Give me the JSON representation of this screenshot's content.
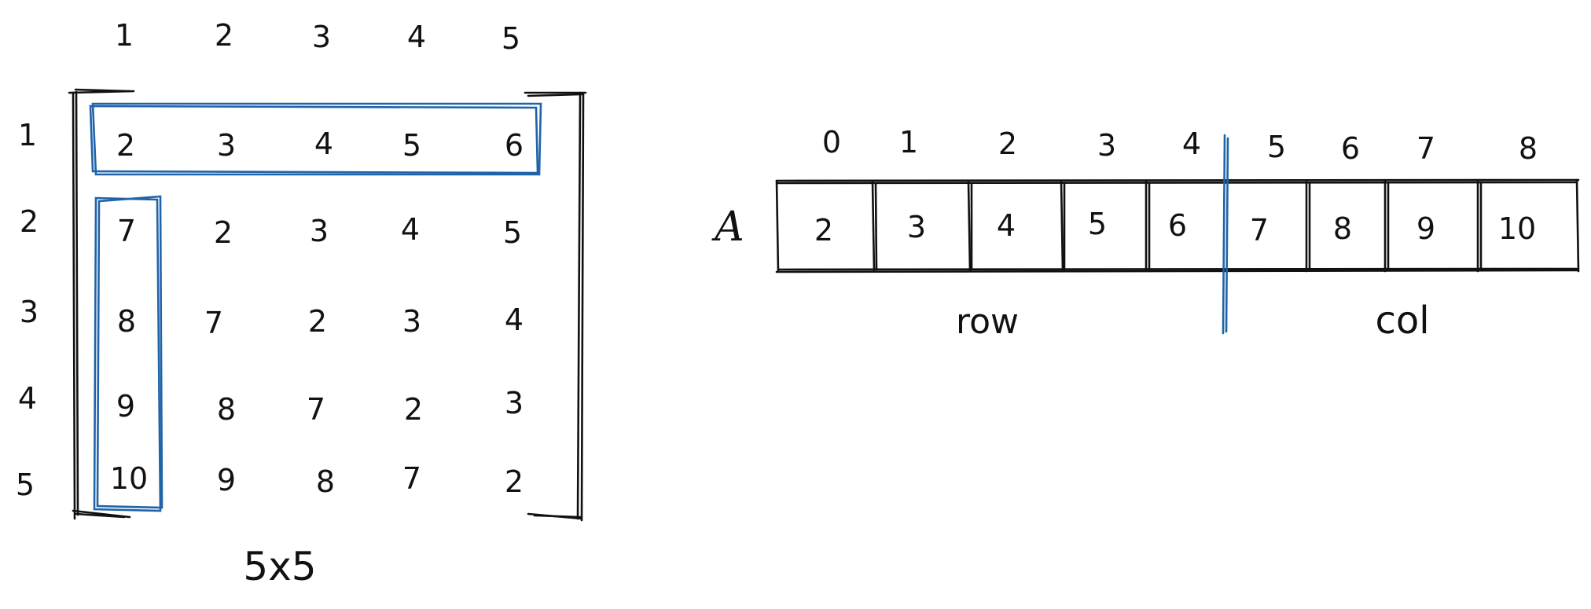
{
  "matrix": {
    "col_headers": [
      "1",
      "2",
      "3",
      "4",
      "5"
    ],
    "row_headers": [
      "1",
      "2",
      "3",
      "4",
      "5"
    ],
    "rows": [
      [
        "2",
        "3",
        "4",
        "5",
        "6"
      ],
      [
        "7",
        "2",
        "3",
        "4",
        "5"
      ],
      [
        "8",
        "7",
        "2",
        "3",
        "4"
      ],
      [
        "9",
        "8",
        "7",
        "2",
        "3"
      ],
      [
        "10",
        "9",
        "8",
        "7",
        "2"
      ]
    ],
    "caption": "5x5",
    "highlight_color": "#1f63a8"
  },
  "array": {
    "name": "A",
    "indices": [
      "0",
      "1",
      "2",
      "3",
      "4",
      "5",
      "6",
      "7",
      "8"
    ],
    "values": [
      "2",
      "3",
      "4",
      "5",
      "6",
      "7",
      "8",
      "9",
      "10"
    ],
    "left_label": "row",
    "right_label": "col",
    "divider_color": "#1f63a8"
  }
}
